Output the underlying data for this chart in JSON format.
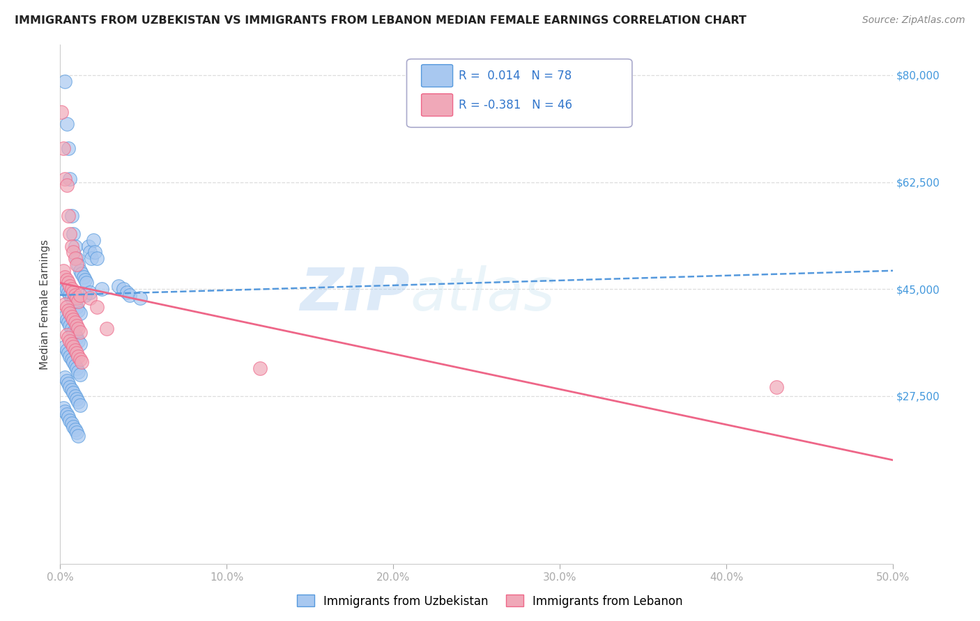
{
  "title": "IMMIGRANTS FROM UZBEKISTAN VS IMMIGRANTS FROM LEBANON MEDIAN FEMALE EARNINGS CORRELATION CHART",
  "source": "Source: ZipAtlas.com",
  "ylabel": "Median Female Earnings",
  "legend_label1": "Immigrants from Uzbekistan",
  "legend_label2": "Immigrants from Lebanon",
  "R1": 0.014,
  "N1": 78,
  "R2": -0.381,
  "N2": 46,
  "xmin": 0.0,
  "xmax": 0.5,
  "ymin": 0,
  "ymax": 85000,
  "yticks": [
    27500,
    45000,
    62500,
    80000
  ],
  "ytick_labels": [
    "$27,500",
    "$45,000",
    "$62,500",
    "$80,000"
  ],
  "xticks": [
    0.0,
    0.1,
    0.2,
    0.3,
    0.4,
    0.5
  ],
  "xtick_labels": [
    "0.0%",
    "10.0%",
    "20.0%",
    "30.0%",
    "40.0%",
    "50.0%"
  ],
  "color_uzbek": "#a8c8f0",
  "color_lebanon": "#f0a8b8",
  "trend_color_uzbek": "#5599dd",
  "trend_color_lebanon": "#ee6688",
  "background_color": "#ffffff",
  "grid_color": "#dddddd",
  "watermark_zip": "ZIP",
  "watermark_atlas": "atlas",
  "uzbek_x": [
    0.003,
    0.004,
    0.005,
    0.006,
    0.007,
    0.008,
    0.009,
    0.01,
    0.011,
    0.012,
    0.013,
    0.014,
    0.015,
    0.016,
    0.017,
    0.018,
    0.019,
    0.02,
    0.021,
    0.022,
    0.003,
    0.004,
    0.005,
    0.006,
    0.007,
    0.008,
    0.009,
    0.01,
    0.011,
    0.012,
    0.003,
    0.004,
    0.005,
    0.006,
    0.007,
    0.008,
    0.009,
    0.01,
    0.011,
    0.012,
    0.003,
    0.004,
    0.005,
    0.006,
    0.007,
    0.008,
    0.009,
    0.01,
    0.011,
    0.012,
    0.003,
    0.004,
    0.005,
    0.006,
    0.007,
    0.008,
    0.009,
    0.01,
    0.011,
    0.012,
    0.002,
    0.003,
    0.004,
    0.005,
    0.006,
    0.007,
    0.008,
    0.009,
    0.01,
    0.011,
    0.015,
    0.018,
    0.025,
    0.035,
    0.038,
    0.04,
    0.042,
    0.048
  ],
  "uzbek_y": [
    79000,
    72000,
    68000,
    63000,
    57000,
    54000,
    52000,
    50000,
    49000,
    48000,
    47500,
    47000,
    46500,
    46000,
    52000,
    51000,
    50000,
    53000,
    51000,
    50000,
    45000,
    45000,
    44500,
    44000,
    43500,
    43000,
    42500,
    42000,
    41500,
    41000,
    40500,
    40000,
    39500,
    39000,
    38500,
    38000,
    37500,
    37000,
    36500,
    36000,
    35500,
    35000,
    34500,
    34000,
    33500,
    33000,
    32500,
    32000,
    31500,
    31000,
    30500,
    30000,
    29500,
    29000,
    28500,
    28000,
    27500,
    27000,
    26500,
    26000,
    25500,
    25000,
    24500,
    24000,
    23500,
    23000,
    22500,
    22000,
    21500,
    21000,
    44000,
    44500,
    45000,
    45500,
    45000,
    44500,
    44000,
    43500
  ],
  "lebanon_x": [
    0.001,
    0.002,
    0.003,
    0.004,
    0.005,
    0.006,
    0.007,
    0.008,
    0.009,
    0.01,
    0.002,
    0.003,
    0.004,
    0.005,
    0.006,
    0.007,
    0.008,
    0.009,
    0.01,
    0.011,
    0.003,
    0.004,
    0.005,
    0.006,
    0.007,
    0.008,
    0.009,
    0.01,
    0.011,
    0.012,
    0.004,
    0.005,
    0.006,
    0.007,
    0.008,
    0.009,
    0.01,
    0.011,
    0.012,
    0.013,
    0.012,
    0.018,
    0.022,
    0.028,
    0.12,
    0.43
  ],
  "lebanon_y": [
    74000,
    68000,
    63000,
    62000,
    57000,
    54000,
    52000,
    51000,
    50000,
    49000,
    48000,
    47000,
    46500,
    46000,
    45500,
    45000,
    44500,
    44000,
    43500,
    43000,
    42500,
    42000,
    41500,
    41000,
    40500,
    40000,
    39500,
    39000,
    38500,
    38000,
    37500,
    37000,
    36500,
    36000,
    35500,
    35000,
    34500,
    34000,
    33500,
    33000,
    44000,
    43500,
    42000,
    38500,
    32000,
    29000
  ],
  "uzbek_trend_x0": 0.0,
  "uzbek_trend_y0": 44000,
  "uzbek_trend_x1": 0.5,
  "uzbek_trend_y1": 48000,
  "lebanon_trend_x0": 0.0,
  "lebanon_trend_y0": 46000,
  "lebanon_trend_x1": 0.5,
  "lebanon_trend_y1": 17000
}
